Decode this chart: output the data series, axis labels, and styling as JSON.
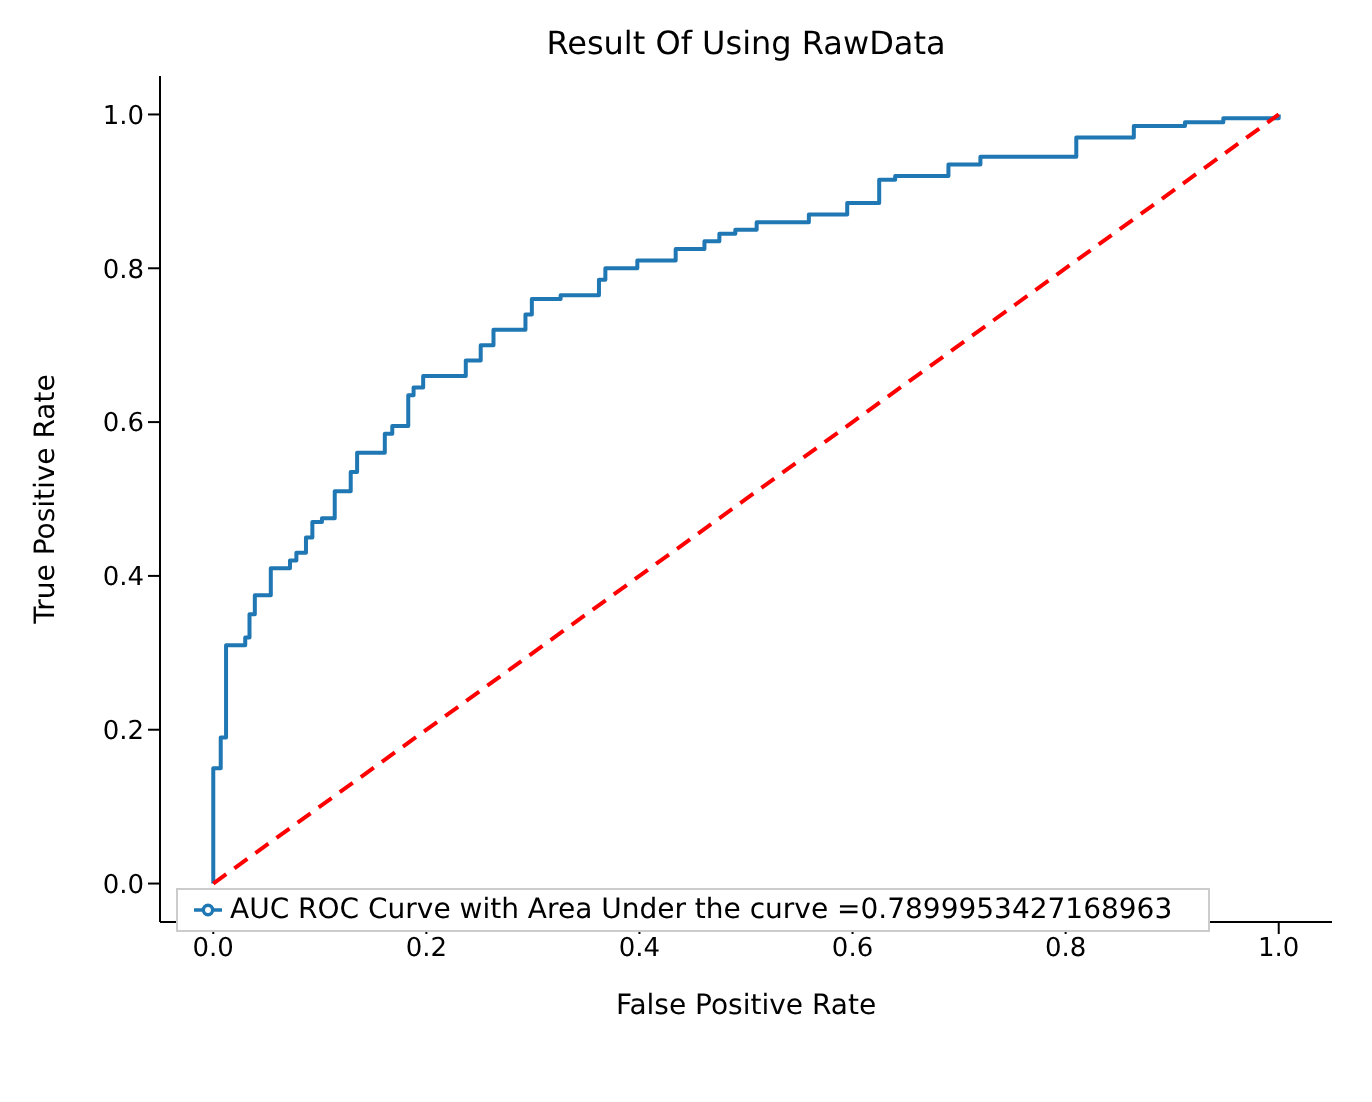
{
  "chart_data": {
    "type": "step",
    "title": "Result Of Using RawData",
    "xlabel": "False Positive Rate",
    "ylabel": "True Positive Rate",
    "xlim": [
      -0.05,
      1.05
    ],
    "ylim": [
      -0.05,
      1.05
    ],
    "xticks": [
      {
        "value": 0,
        "label": "0.0"
      },
      0.2,
      0.4,
      0.6,
      0.8,
      {
        "value": 1,
        "label": "1.0"
      }
    ],
    "yticks": [
      {
        "value": 0,
        "label": "0.0"
      },
      0.2,
      0.4,
      0.6,
      0.8,
      {
        "value": 1,
        "label": "1.0"
      }
    ],
    "grid": false,
    "legend": "bottom",
    "marker": "none",
    "series": [
      {
        "name": "AUC ROC Curve with Area Under the curve =0.7899953427168963",
        "color": "#1f77b4",
        "line_style": "solid",
        "x": [
          0,
          0,
          0.007,
          0.012,
          0.03,
          0.034,
          0.039,
          0.054,
          0.072,
          0.078,
          0.087,
          0.093,
          0.102,
          0.114,
          0.129,
          0.135,
          0.161,
          0.168,
          0.183,
          0.188,
          0.197,
          0.237,
          0.251,
          0.263,
          0.293,
          0.299,
          0.326,
          0.362,
          0.368,
          0.398,
          0.434,
          0.461,
          0.475,
          0.49,
          0.51,
          0.559,
          0.595,
          0.625,
          0.64,
          0.69,
          0.72,
          0.81,
          0.864,
          0.912,
          0.948,
          1
        ],
        "values": [
          0,
          0.15,
          0.19,
          0.31,
          0.32,
          0.35,
          0.375,
          0.41,
          0.42,
          0.43,
          0.45,
          0.47,
          0.475,
          0.51,
          0.535,
          0.56,
          0.585,
          0.595,
          0.635,
          0.645,
          0.66,
          0.68,
          0.7,
          0.72,
          0.74,
          0.76,
          0.765,
          0.785,
          0.8,
          0.81,
          0.825,
          0.835,
          0.845,
          0.85,
          0.86,
          0.87,
          0.885,
          0.915,
          0.92,
          0.935,
          0.945,
          0.97,
          0.985,
          0.99,
          0.995,
          1
        ]
      },
      {
        "color": "#ff0000",
        "type": "line",
        "line_style": "dashed",
        "x": [
          0,
          1
        ],
        "values": [
          0,
          1
        ]
      }
    ]
  }
}
